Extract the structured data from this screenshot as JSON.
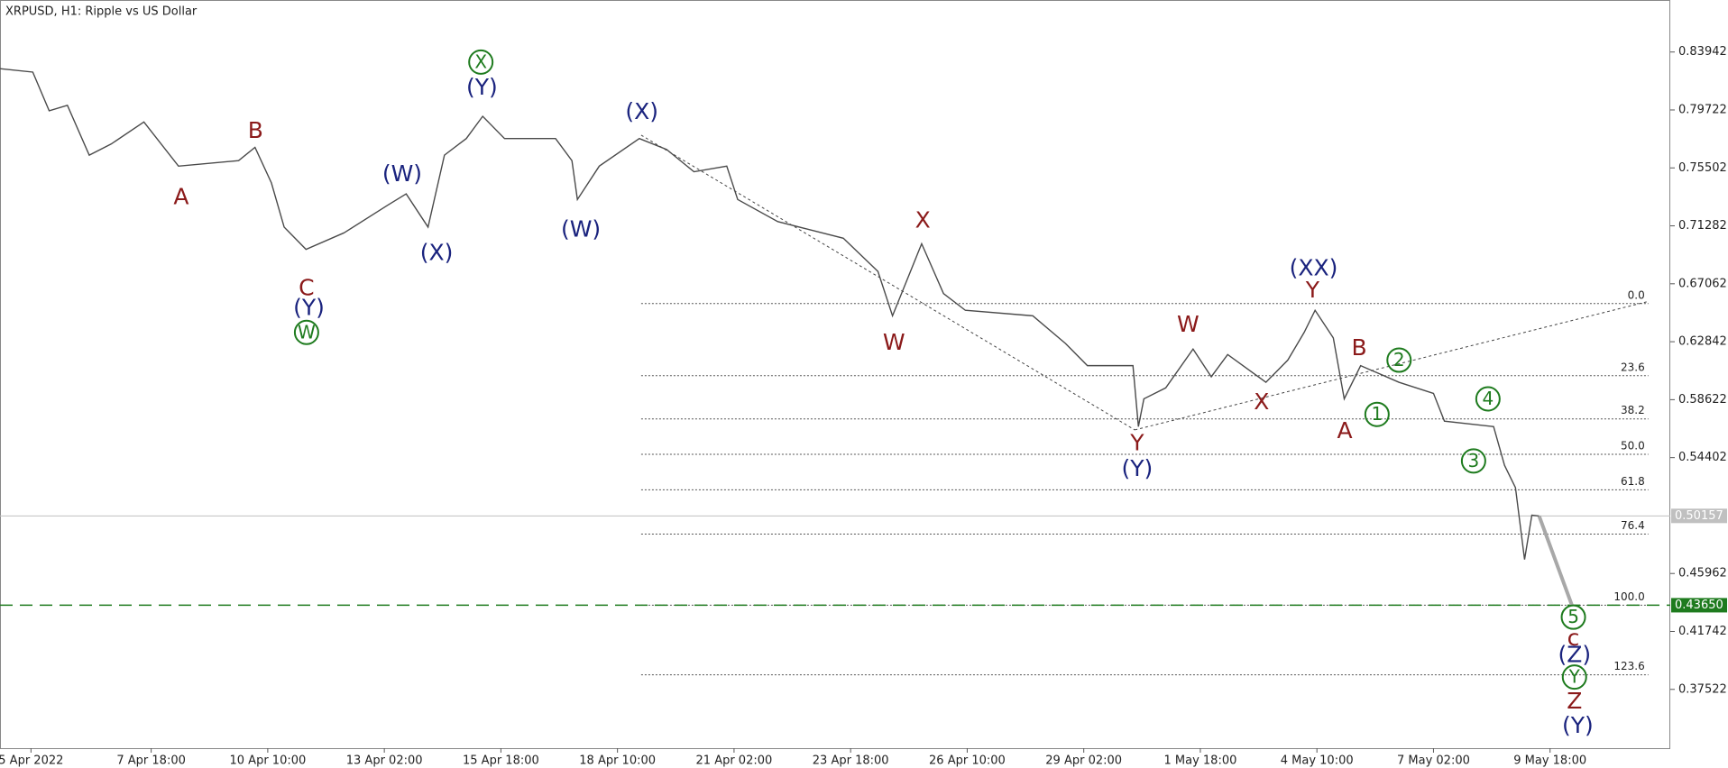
{
  "chart_data": {
    "type": "line",
    "title": "XRPUSD, H1:  Ripple vs US Dollar",
    "x": [
      -17,
      1,
      10,
      20,
      32,
      44,
      62,
      81,
      114,
      123,
      132,
      139,
      151,
      172,
      196,
      206,
      218,
      227,
      239,
      248,
      260,
      288,
      297,
      300,
      312,
      334,
      349,
      364,
      382,
      388,
      410,
      446,
      465,
      473,
      489,
      501,
      513,
      550,
      568,
      580,
      605,
      608,
      611,
      623,
      638,
      648,
      657,
      678,
      690,
      699,
      705,
      715,
      721,
      730,
      751,
      770,
      776,
      803,
      809,
      815,
      820,
      824,
      828
    ],
    "values": [
      0.8273,
      0.8248,
      0.7966,
      0.8006,
      0.7643,
      0.7724,
      0.7885,
      0.7563,
      0.7603,
      0.77,
      0.7441,
      0.7119,
      0.6957,
      0.7078,
      0.728,
      0.7361,
      0.7119,
      0.7643,
      0.7764,
      0.7926,
      0.7764,
      0.7764,
      0.7603,
      0.732,
      0.7563,
      0.7764,
      0.7684,
      0.7522,
      0.7563,
      0.732,
      0.7159,
      0.7038,
      0.6796,
      0.6473,
      0.6998,
      0.6635,
      0.6513,
      0.6473,
      0.6271,
      0.611,
      0.611,
      0.5666,
      0.5868,
      0.5948,
      0.6231,
      0.6029,
      0.6191,
      0.5989,
      0.615,
      0.6352,
      0.6513,
      0.6312,
      0.5868,
      0.611,
      0.5989,
      0.5908,
      0.5706,
      0.5666,
      0.5384,
      0.5222,
      0.4698,
      0.5021,
      0.5015
    ],
    "color": "#4a4a4a",
    "projection": {
      "x": [
        828,
        846
      ],
      "values": [
        0.5015,
        0.4365
      ],
      "color": "#a8a8a8"
    },
    "xlim": [
      -17,
      900
    ],
    "ylim": [
      0.3324,
      0.8773
    ],
    "yticks": [
      0.83942,
      0.79722,
      0.75502,
      0.71282,
      0.67062,
      0.62842,
      0.58622,
      0.54402,
      0.45962,
      0.41742,
      0.37522
    ],
    "xticks": [
      {
        "value": 0,
        "label": "5 Apr 2022"
      },
      {
        "value": 66,
        "label": "7 Apr 18:00"
      },
      {
        "value": 130,
        "label": "10 Apr 10:00"
      },
      {
        "value": 194,
        "label": "13 Apr 02:00"
      },
      {
        "value": 258,
        "label": "15 Apr 18:00"
      },
      {
        "value": 322,
        "label": "18 Apr 10:00"
      },
      {
        "value": 386,
        "label": "21 Apr 02:00"
      },
      {
        "value": 450,
        "label": "23 Apr 18:00"
      },
      {
        "value": 514,
        "label": "26 Apr 10:00"
      },
      {
        "value": 578,
        "label": "29 Apr 02:00"
      },
      {
        "value": 642,
        "label": "1 May 18:00"
      },
      {
        "value": 706,
        "label": "4 May 10:00"
      },
      {
        "value": 770,
        "label": "7 May 02:00"
      },
      {
        "value": 834,
        "label": "9 May 18:00"
      }
    ],
    "price_lines": [
      {
        "value": 0.50157,
        "color": "#c0c0c0",
        "dashed": false
      },
      {
        "value": {
          "value": 0.4365,
          "label": "0.43650"
        },
        "color": "#1e7b1e",
        "dashed": true
      }
    ],
    "fibonacci": {
      "x": [
        335,
        888
      ],
      "levels": [
        {
          "label": "0.0",
          "value": 0.6562
        },
        {
          "label": "23.6",
          "value": 0.6037
        },
        {
          "label": "38.2",
          "value": 0.5722
        },
        {
          "label": "50.0",
          "value": 0.5464
        },
        {
          "label": "61.8",
          "value": 0.5206
        },
        {
          "label": "76.4",
          "value": 0.4883
        },
        {
          "label": "100.0",
          "value": 0.4365
        },
        {
          "label": "123.6",
          "value": 0.3858
        }
      ]
    },
    "trendlines": [
      {
        "x": [
          335,
          606
        ],
        "values": [
          0.7789,
          0.5642
        ]
      },
      {
        "x": [
          606,
          888
        ],
        "values": [
          0.5642,
          0.6578
        ]
      }
    ],
    "wave_labels": [
      {
        "text": "A",
        "x": 82.5,
        "y": 0.7337,
        "color": "#8b1a1a"
      },
      {
        "text": "B",
        "x": 123.3,
        "y": 0.7821,
        "color": "#8b1a1a"
      },
      {
        "text": "C",
        "x": 151.3,
        "y": 0.6675,
        "color": "#8b1a1a"
      },
      {
        "text": "(Y)",
        "x": 152.6,
        "y": 0.653,
        "color": "#1a237e"
      },
      {
        "text": "W",
        "x": 151.3,
        "y": 0.6352,
        "color": "#1e7b1e",
        "circled": true
      },
      {
        "text": "(W)",
        "x": 203.8,
        "y": 0.7506,
        "color": "#1a237e"
      },
      {
        "text": "(X)",
        "x": 222.7,
        "y": 0.6933,
        "color": "#1a237e"
      },
      {
        "text": "X",
        "x": 247,
        "y": 0.8321,
        "color": "#1e7b1e",
        "circled": true
      },
      {
        "text": "(Y)",
        "x": 247.6,
        "y": 0.8135,
        "color": "#1a237e"
      },
      {
        "text": "(W)",
        "x": 301.9,
        "y": 0.7103,
        "color": "#1a237e"
      },
      {
        "text": "(X)",
        "x": 335.4,
        "y": 0.7958,
        "color": "#1a237e"
      },
      {
        "text": "X",
        "x": 489.6,
        "y": 0.7167,
        "color": "#8b1a1a"
      },
      {
        "text": "W",
        "x": 473.8,
        "y": 0.6279,
        "color": "#8b1a1a"
      },
      {
        "text": "Y",
        "x": 607.3,
        "y": 0.5545,
        "color": "#8b1a1a"
      },
      {
        "text": "(Y)",
        "x": 607.3,
        "y": 0.5359,
        "color": "#1a237e"
      },
      {
        "text": "W",
        "x": 635.3,
        "y": 0.6409,
        "color": "#8b1a1a"
      },
      {
        "text": "X",
        "x": 675.6,
        "y": 0.5844,
        "color": "#8b1a1a"
      },
      {
        "text": "(XX)",
        "x": 704.2,
        "y": 0.682,
        "color": "#1a237e"
      },
      {
        "text": "Y",
        "x": 703.6,
        "y": 0.6659,
        "color": "#8b1a1a"
      },
      {
        "text": "B",
        "x": 729.2,
        "y": 0.6239,
        "color": "#8b1a1a"
      },
      {
        "text": "A",
        "x": 721.3,
        "y": 0.5634,
        "color": "#8b1a1a"
      },
      {
        "text": "1",
        "x": 739,
        "y": 0.5755,
        "color": "#1e7b1e",
        "circled": true
      },
      {
        "text": "2",
        "x": 751.1,
        "y": 0.615,
        "color": "#1e7b1e",
        "circled": true
      },
      {
        "text": "3",
        "x": 792,
        "y": 0.5416,
        "color": "#1e7b1e",
        "circled": true
      },
      {
        "text": "4",
        "x": 799.9,
        "y": 0.5868,
        "color": "#1e7b1e",
        "circled": true
      },
      {
        "text": "5",
        "x": 846.8,
        "y": 0.4278,
        "color": "#1e7b1e",
        "circled": true
      },
      {
        "text": "c",
        "x": 846.8,
        "y": 0.4125,
        "color": "#8b1a1a"
      },
      {
        "text": "(Z)",
        "x": 847.4,
        "y": 0.4004,
        "color": "#1a237e"
      },
      {
        "text": "Y",
        "x": 847.4,
        "y": 0.3842,
        "color": "#1e7b1e",
        "circled": true
      },
      {
        "text": "Z",
        "x": 847.4,
        "y": 0.3665,
        "color": "#8b1a1a"
      },
      {
        "text": "(Y)",
        "x": 849.2,
        "y": 0.3487,
        "color": "#1a237e"
      }
    ]
  }
}
